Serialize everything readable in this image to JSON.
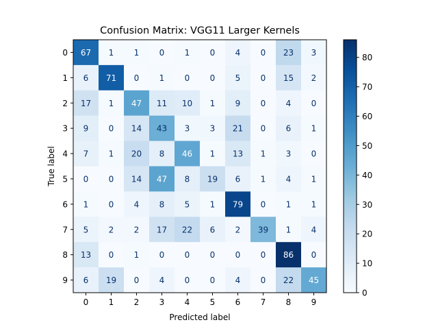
{
  "chart_data": {
    "type": "heatmap",
    "title": "Confusion Matrix: VGG11 Larger Kernels",
    "xlabel": "Predicted label",
    "ylabel": "True label",
    "x_categories": [
      "0",
      "1",
      "2",
      "3",
      "4",
      "5",
      "6",
      "7",
      "8",
      "9"
    ],
    "y_categories": [
      "0",
      "1",
      "2",
      "3",
      "4",
      "5",
      "6",
      "7",
      "8",
      "9"
    ],
    "matrix": [
      [
        67,
        1,
        1,
        0,
        1,
        0,
        4,
        0,
        23,
        3
      ],
      [
        6,
        71,
        0,
        1,
        0,
        0,
        5,
        0,
        15,
        2
      ],
      [
        17,
        1,
        47,
        11,
        10,
        1,
        9,
        0,
        4,
        0
      ],
      [
        9,
        0,
        14,
        43,
        3,
        3,
        21,
        0,
        6,
        1
      ],
      [
        7,
        1,
        20,
        8,
        46,
        1,
        13,
        1,
        3,
        0
      ],
      [
        0,
        0,
        14,
        47,
        8,
        19,
        6,
        1,
        4,
        1
      ],
      [
        1,
        0,
        4,
        8,
        5,
        1,
        79,
        0,
        1,
        1
      ],
      [
        5,
        2,
        2,
        17,
        22,
        6,
        2,
        39,
        1,
        4
      ],
      [
        13,
        0,
        1,
        0,
        0,
        0,
        0,
        0,
        86,
        0
      ],
      [
        6,
        19,
        0,
        4,
        0,
        0,
        4,
        0,
        22,
        45
      ]
    ],
    "colormap": "Blues",
    "vmin": 0,
    "vmax": 86,
    "colorbar_ticks": [
      0,
      10,
      20,
      30,
      40,
      50,
      60,
      70,
      80
    ],
    "colorbar_ticks_labels": [
      "0",
      "10",
      "20",
      "30",
      "40",
      "50",
      "60",
      "70",
      "80"
    ]
  }
}
